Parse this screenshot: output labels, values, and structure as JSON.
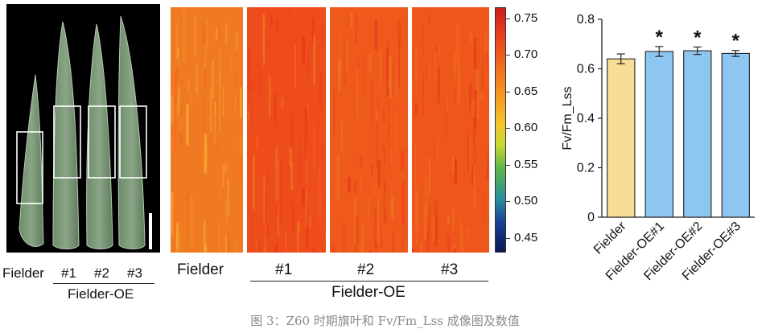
{
  "panel_a": {
    "labels": [
      "Fielder",
      "#1",
      "#2",
      "#3"
    ],
    "group_label": "Fielder-OE"
  },
  "panel_b": {
    "labels": [
      "Fielder",
      "#1",
      "#2",
      "#3"
    ],
    "group_label": "Fielder-OE",
    "colorbar_ticks": [
      "0.75",
      "0.70",
      "0.65",
      "0.60",
      "0.55",
      "0.50",
      "0.45"
    ],
    "colorbar_min": 0.43,
    "colorbar_max": 0.765,
    "image_base_colors": [
      "#f07a22",
      "#ee4c1a",
      "#ef5a1c",
      "#ef561c"
    ]
  },
  "chart_data": {
    "type": "bar",
    "categories": [
      "Fielder",
      "Fielder-OE#1",
      "Fielder-OE#2",
      "Fielder-OE#3"
    ],
    "values": [
      0.64,
      0.67,
      0.673,
      0.662
    ],
    "errors": [
      0.02,
      0.02,
      0.015,
      0.012
    ],
    "significance": [
      "",
      "*",
      "*",
      "*"
    ],
    "bar_colors": [
      "#f7dd96",
      "#8ec6f2",
      "#8ec6f2",
      "#8ec6f2"
    ],
    "ylabel": "Fv/Fm_Lss",
    "xlabel": "",
    "ylim": [
      0,
      0.8
    ],
    "yticks": [
      "0",
      "0.2",
      "0.4",
      "0.6",
      "0.8"
    ]
  },
  "caption": "图 3：Z60 时期旗叶和 Fv/Fm_Lss 成像图及数值"
}
